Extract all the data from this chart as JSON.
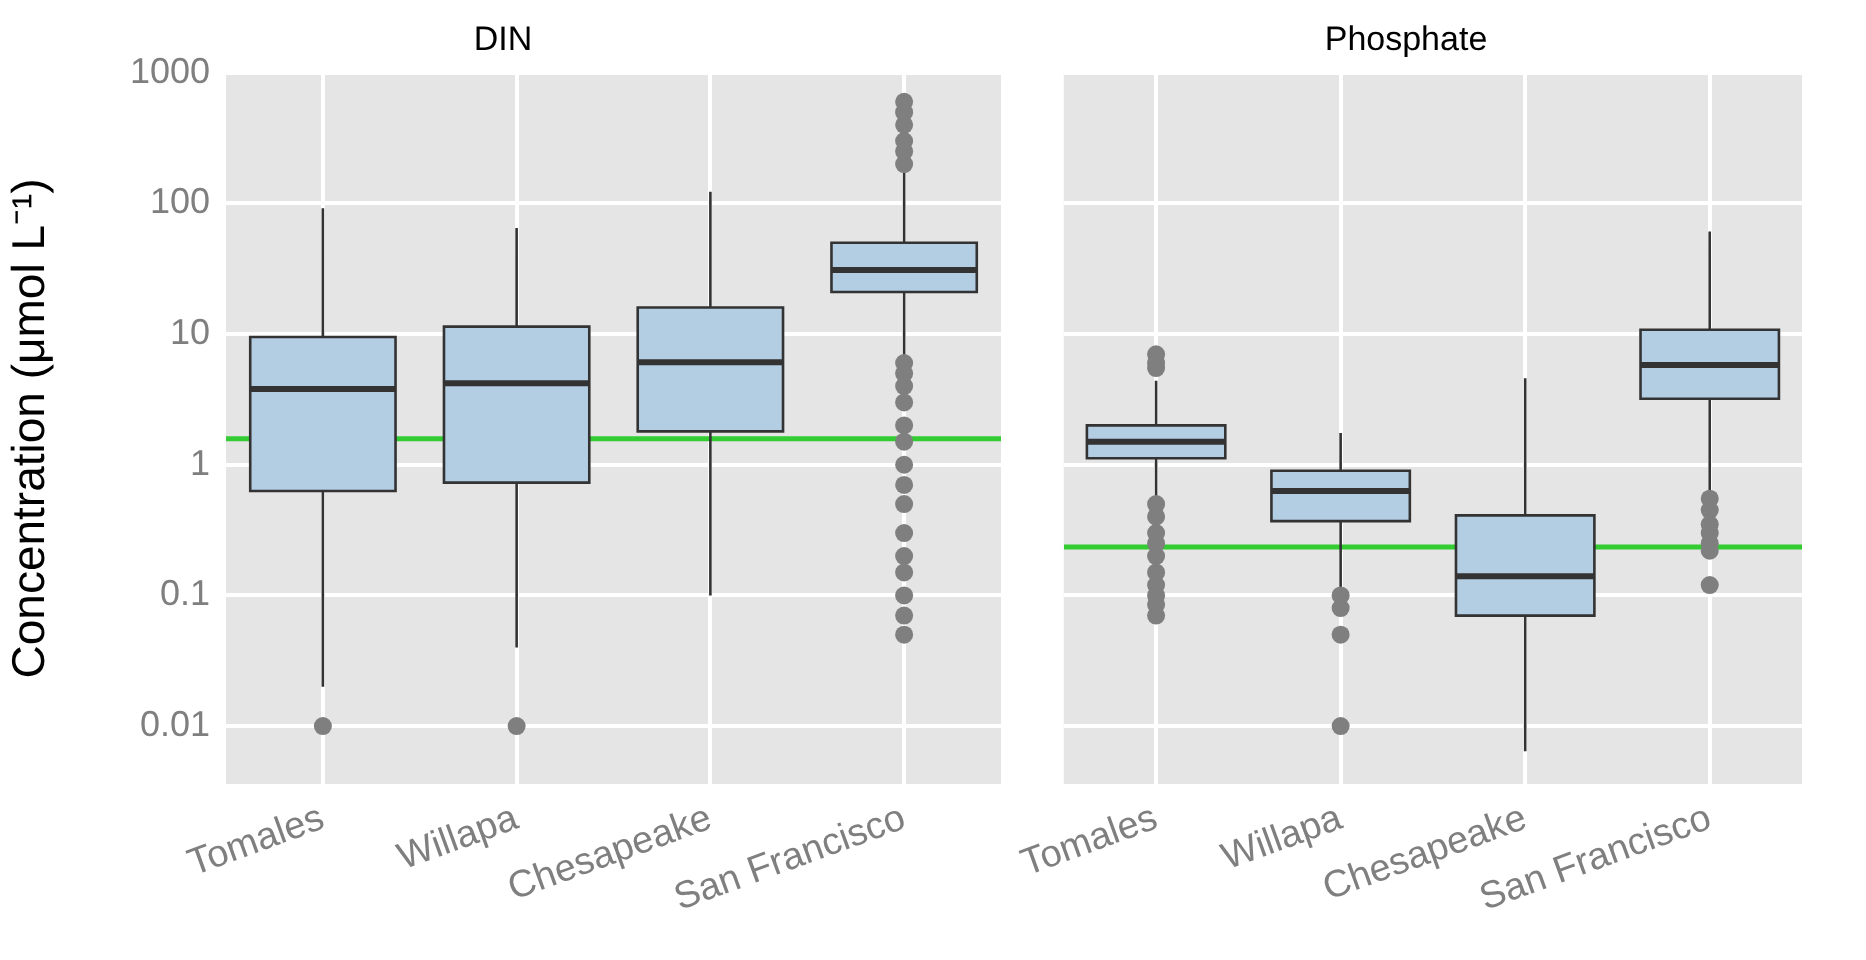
{
  "chart_data": [
    {
      "type": "box",
      "title": "DIN",
      "ylabel": "Concentration (μmol L⁻¹)",
      "categories": [
        "Tomales",
        "Willapa",
        "Chesapeake",
        "San Francisco"
      ],
      "log": "y",
      "grid": true,
      "ylim": [
        0.0036,
        1000
      ],
      "yticks": [
        0.01,
        0.1,
        1,
        10,
        100,
        1000
      ],
      "series": [
        {
          "color": "#b3cde3",
          "boxes": [
            {
              "low": 0.02,
              "q1": 0.63,
              "median": 3.8,
              "q3": 9.5,
              "high": 92,
              "outliers": [
                0.01
              ]
            },
            {
              "low": 0.04,
              "q1": 0.73,
              "median": 4.2,
              "q3": 11.4,
              "high": 65,
              "outliers": [
                0.01
              ]
            },
            {
              "low": 0.1,
              "q1": 1.8,
              "median": 6.1,
              "q3": 16,
              "high": 123
            },
            {
              "low": 5.8,
              "q1": 21,
              "median": 31,
              "q3": 50,
              "high": 174,
              "outliers": [
                200,
                250,
                300,
                400,
                500,
                600,
                6,
                5,
                4,
                3,
                2,
                1.5,
                1,
                0.7,
                0.5,
                0.3,
                0.2,
                0.15,
                0.1,
                0.07,
                0.05
              ]
            }
          ]
        }
      ],
      "ref_lines": [
        {
          "axis": "y",
          "value": 1.58,
          "color": "#33cc33"
        }
      ]
    },
    {
      "type": "box",
      "title": "Phosphate",
      "categories": [
        "Tomales",
        "Willapa",
        "Chesapeake",
        "San Francisco"
      ],
      "log": "y",
      "grid": true,
      "ylim": [
        0.0036,
        1000
      ],
      "yticks": [
        0.01,
        0.1,
        1,
        10,
        100,
        1000
      ],
      "tick_labels": "x",
      "series": [
        {
          "color": "#b3cde3",
          "boxes": [
            {
              "low": 0.56,
              "q1": 1.12,
              "median": 1.5,
              "q3": 2.0,
              "high": 4.4,
              "outliers": [
                5.5,
                6,
                7,
                0.5,
                0.4,
                0.3,
                0.25,
                0.2,
                0.15,
                0.12,
                0.1,
                0.085,
                0.07
              ]
            },
            {
              "low": 0.11,
              "q1": 0.37,
              "median": 0.63,
              "q3": 0.9,
              "high": 1.75,
              "outliers": [
                0.1,
                0.08,
                0.05,
                0.01
              ]
            },
            {
              "low": 0.0064,
              "q1": 0.07,
              "median": 0.14,
              "q3": 0.41,
              "high": 4.6
            },
            {
              "low": 0.6,
              "q1": 3.2,
              "median": 5.8,
              "q3": 10.8,
              "high": 61,
              "outliers": [
                0.55,
                0.45,
                0.35,
                0.3,
                0.25,
                0.22,
                0.12
              ]
            }
          ]
        }
      ],
      "ref_lines": [
        {
          "axis": "y",
          "value": 0.235,
          "color": "#33cc33"
        }
      ]
    }
  ]
}
